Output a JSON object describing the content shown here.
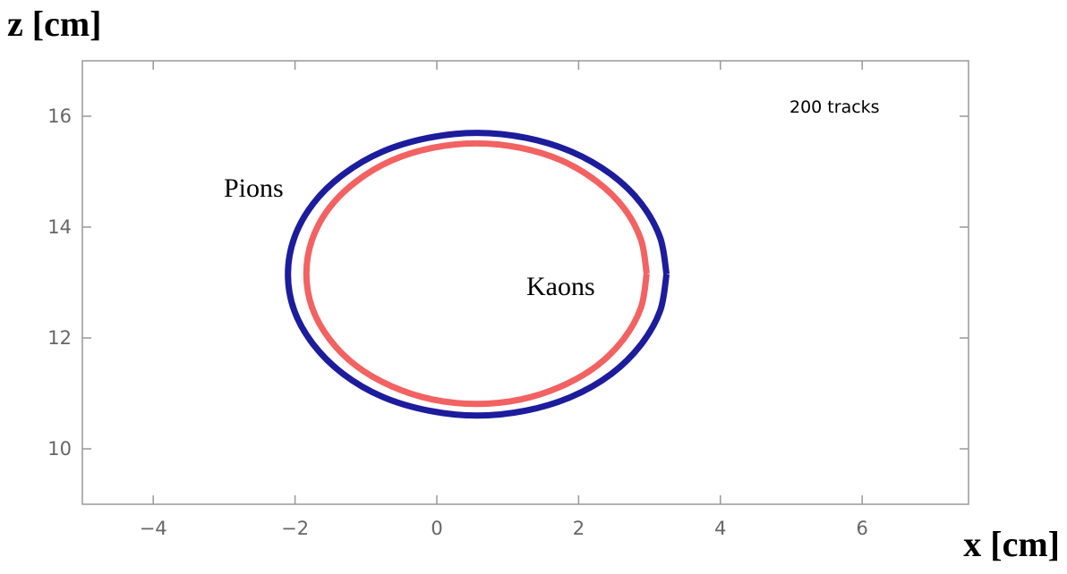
{
  "chart_data": {
    "type": "line",
    "x_label": "x [cm]",
    "y_label": "z [cm]",
    "annotations": [
      "200 tracks",
      "Pions",
      "Kaons"
    ],
    "xlim": [
      -5,
      7.5
    ],
    "ylim": [
      9,
      17
    ],
    "xticks": [
      {
        "value": -4,
        "label": "−4"
      },
      {
        "value": -2,
        "label": "−2"
      },
      0,
      2,
      4,
      6
    ],
    "yticks": [
      10,
      12,
      14,
      16
    ],
    "series": [
      {
        "name": "Pions",
        "color": "#1c1c9c",
        "x": [
          3.24,
          3.15,
          2.88,
          2.46,
          1.9,
          1.26,
          0.57,
          -0.12,
          -0.77,
          -1.32,
          -1.74,
          -2.01,
          -2.1,
          -2.01,
          -1.74,
          -1.32,
          -0.77,
          -0.12,
          0.57,
          1.26,
          1.9,
          2.46,
          2.88,
          3.15,
          3.24
        ],
        "values": [
          13.15,
          13.81,
          14.43,
          14.95,
          15.36,
          15.61,
          15.7,
          15.61,
          15.36,
          14.95,
          14.43,
          13.81,
          13.15,
          12.49,
          11.88,
          11.35,
          10.94,
          10.69,
          10.6,
          10.69,
          10.94,
          11.35,
          11.88,
          12.49,
          13.15
        ]
      },
      {
        "name": "Kaons",
        "color": "#f26262",
        "x": [
          2.96,
          2.88,
          2.64,
          2.26,
          1.76,
          1.18,
          0.56,
          -0.06,
          -0.64,
          -1.14,
          -1.52,
          -1.76,
          -1.84,
          -1.76,
          -1.52,
          -1.14,
          -0.64,
          -0.06,
          0.56,
          1.18,
          1.76,
          2.26,
          2.64,
          2.88,
          2.96
        ],
        "values": [
          13.16,
          13.77,
          14.34,
          14.82,
          15.2,
          15.43,
          15.51,
          15.43,
          15.2,
          14.82,
          14.34,
          13.77,
          13.16,
          12.55,
          11.99,
          11.5,
          11.13,
          10.89,
          10.81,
          10.89,
          11.13,
          11.5,
          11.99,
          12.55,
          13.16
        ]
      }
    ]
  }
}
